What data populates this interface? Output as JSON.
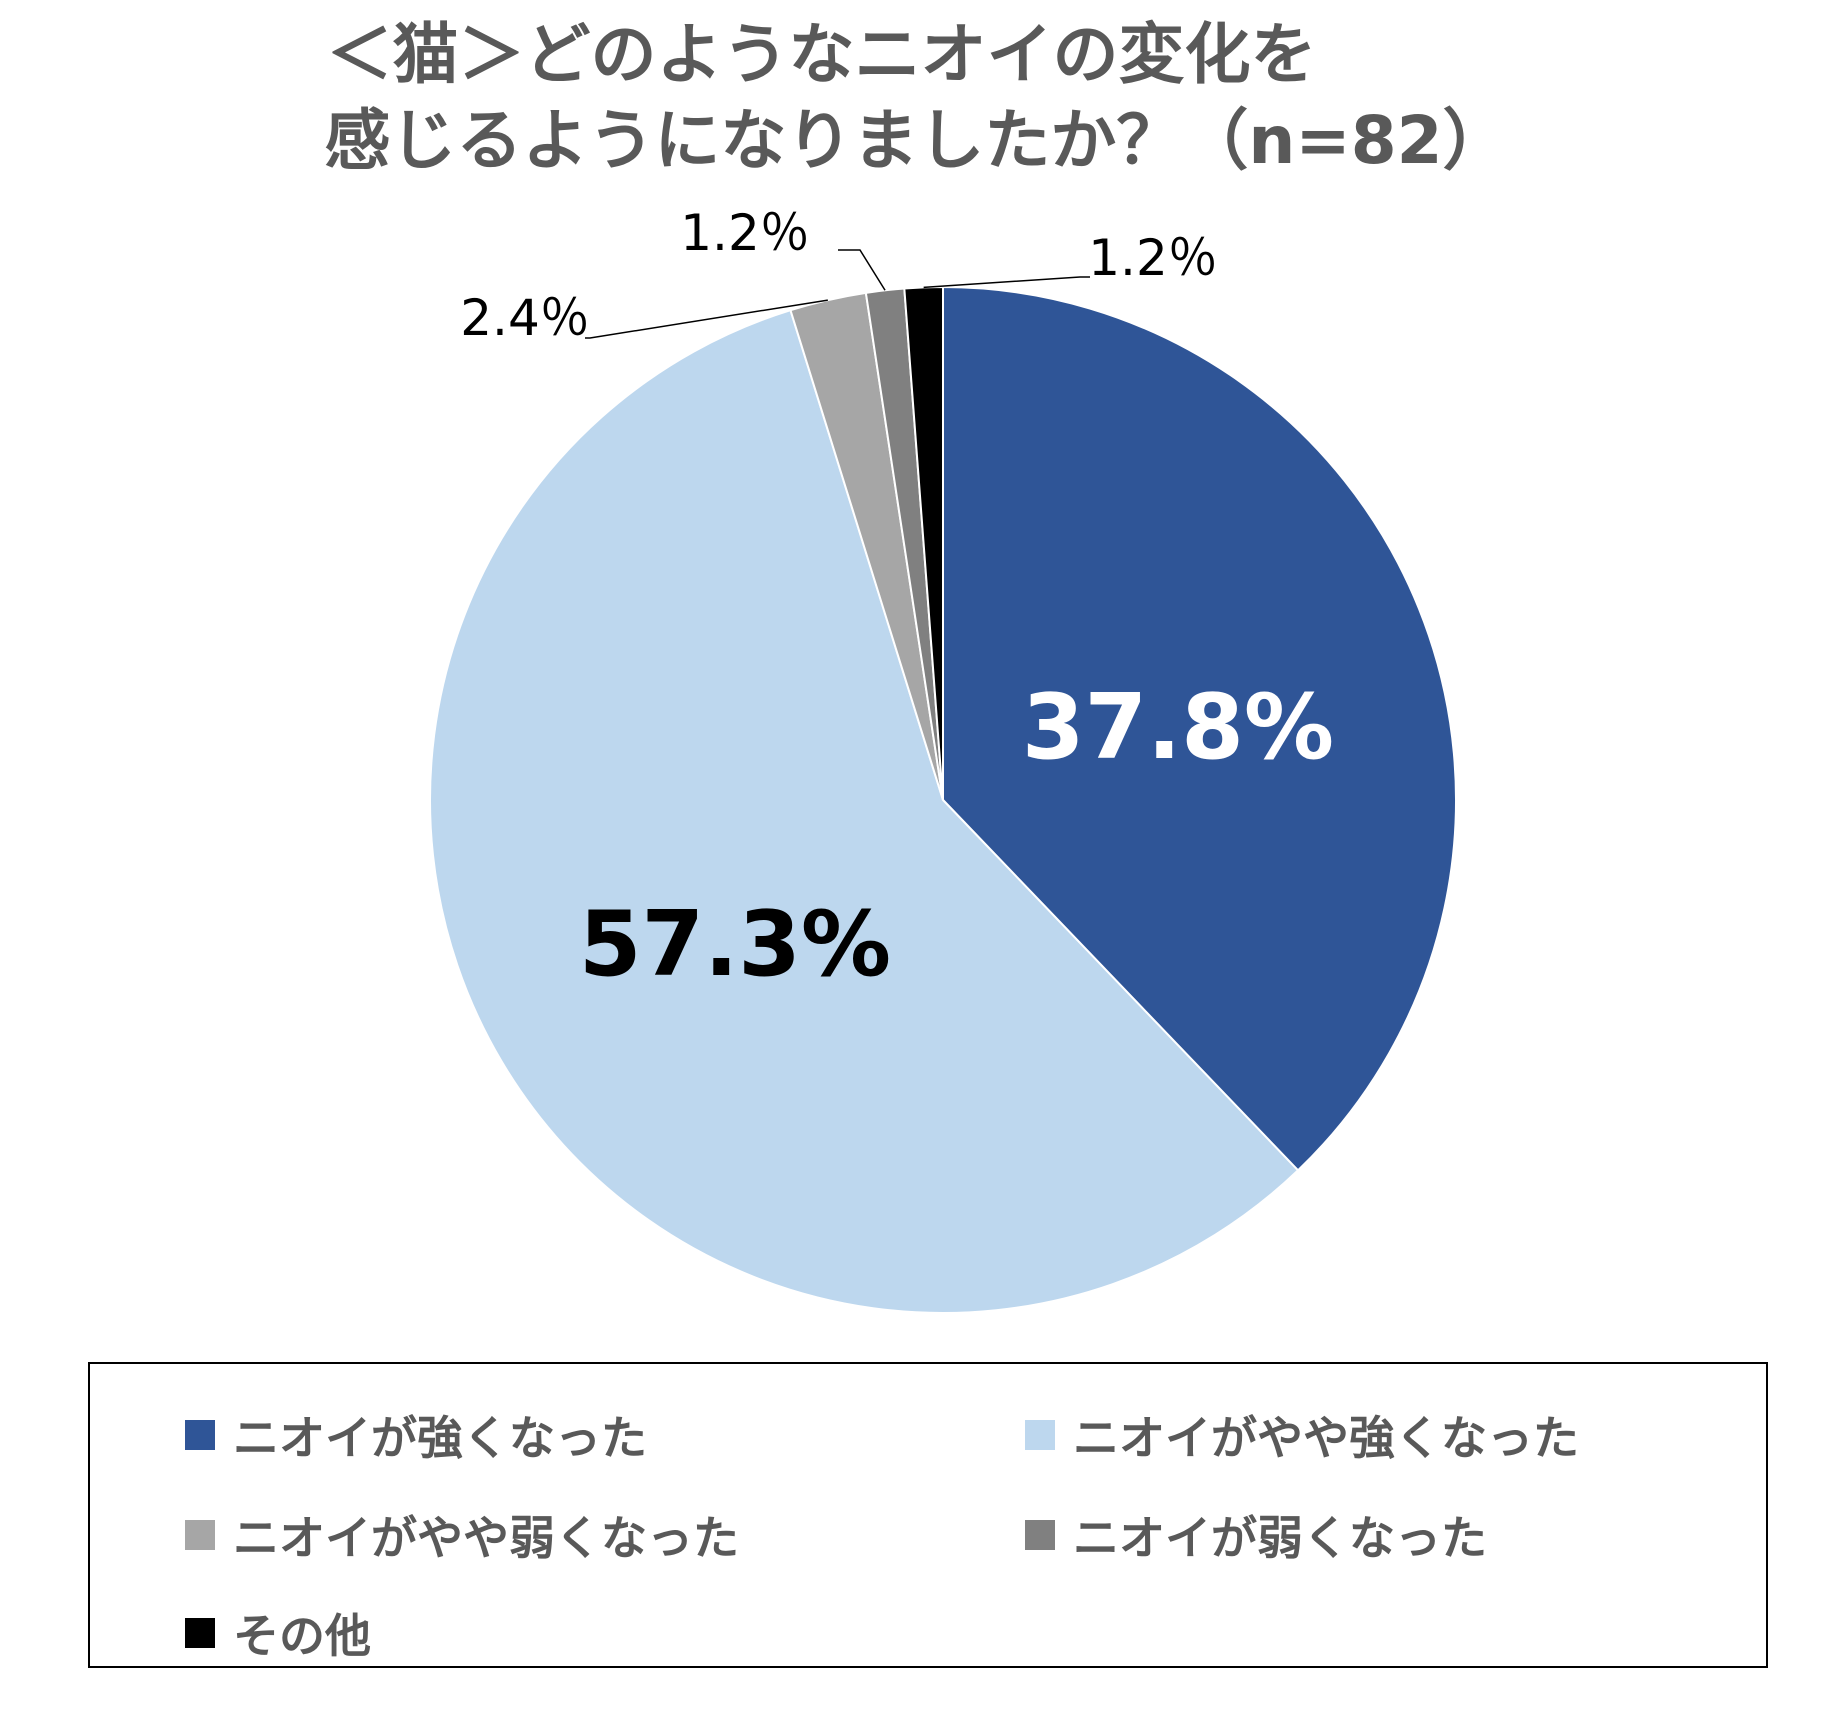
{
  "title": {
    "line1": "＜猫＞どのようなニオイの変化を",
    "line2": "感じるようになりましたか？（n=82）"
  },
  "chart_data": {
    "type": "pie",
    "start_angle_deg": 0,
    "direction": "clockwise",
    "slices": [
      {
        "label": "ニオイが強くなった",
        "value": 37.8,
        "display": "37.8%",
        "color": "#2F5597"
      },
      {
        "label": "ニオイがやや強くなった",
        "value": 57.3,
        "display": "57.3%",
        "color": "#BDD7EE"
      },
      {
        "label": "ニオイがやや弱くなった",
        "value": 2.4,
        "display": "2.4％",
        "color": "#A6A6A6"
      },
      {
        "label": "ニオイが弱くなった",
        "value": 1.2,
        "display": "1.2％",
        "color": "#808080"
      },
      {
        "label": "その他",
        "value": 1.2,
        "display": "1.2％",
        "color": "#000000"
      }
    ]
  },
  "legend": {
    "items": [
      {
        "label": "ニオイが強くなった",
        "color": "#2F5597"
      },
      {
        "label": "ニオイがやや強くなった",
        "color": "#BDD7EE"
      },
      {
        "label": "ニオイがやや弱くなった",
        "color": "#A6A6A6"
      },
      {
        "label": "ニオイが弱くなった",
        "color": "#808080"
      },
      {
        "label": "その他",
        "color": "#000000"
      }
    ]
  }
}
